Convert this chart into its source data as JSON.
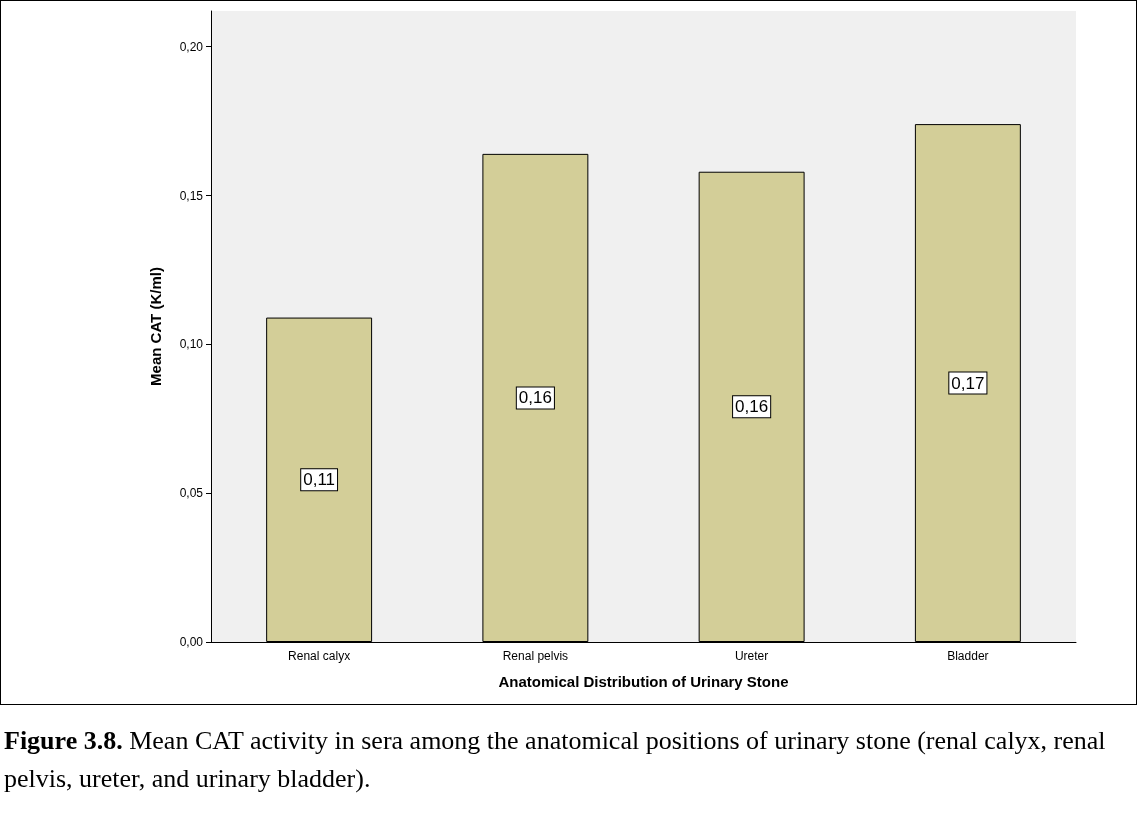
{
  "chart_data": {
    "type": "bar",
    "xlabel": "Anatomical Distribution of Urinary Stone",
    "ylabel": "Mean CAT (K/ml)",
    "categories": [
      "Renal calyx",
      "Renal pelvis",
      "Ureter",
      "Bladder"
    ],
    "values": [
      0.109,
      0.164,
      0.158,
      0.174
    ],
    "value_labels": [
      "0,11",
      "0,16",
      "0,16",
      "0,17"
    ],
    "color": "#d3ce98",
    "ylim": [
      0,
      0.212
    ],
    "yticks": [
      {
        "value": 0,
        "label": "0,00"
      },
      {
        "value": 0.05,
        "label": "0,05"
      },
      {
        "value": 0.1,
        "label": "0,10"
      },
      {
        "value": 0.15,
        "label": "0,15"
      },
      {
        "value": 0.2,
        "label": "0,20"
      }
    ],
    "grid": false,
    "annotations": [
      "Figure 3.8. Mean CAT activity in sera among the anatomical positions of urinary stone (renal calyx, renal pelvis, ureter, and urinary bladder)."
    ]
  }
}
